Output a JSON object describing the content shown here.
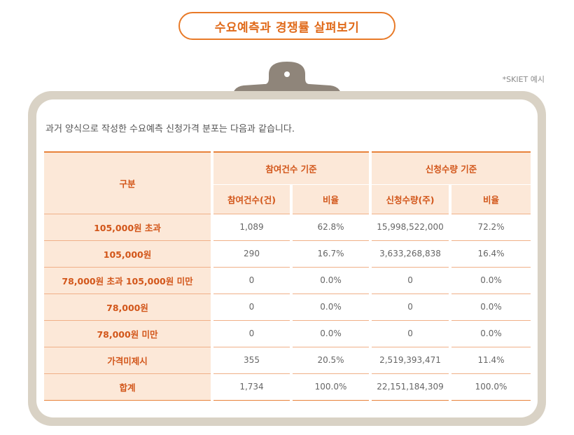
{
  "title": "수요예측과 경쟁률 살펴보기",
  "note": "*SKIET 예시",
  "intro": "과거 양식으로 작성한 수요예측 신청가격 분포는 다음과 같습니다.",
  "colors": {
    "accent": "#e87a28",
    "header_bg": "#fce8d8",
    "label_text": "#d2561a",
    "board": "#d9d2c5",
    "clip": "#8f857a"
  },
  "icons": {
    "clipboard": "clipboard-clip-icon"
  },
  "table": {
    "header_label": "구분",
    "group1": "참여건수 기준",
    "group2": "신청수량 기준",
    "sub": [
      "참여건수(건)",
      "비율",
      "신청수량(주)",
      "비율"
    ],
    "rows": [
      {
        "label": "105,000원 초과",
        "values": [
          "1,089",
          "62.8%",
          "15,998,522,000",
          "72.2%"
        ]
      },
      {
        "label": "105,000원",
        "values": [
          "290",
          "16.7%",
          "3,633,268,838",
          "16.4%"
        ]
      },
      {
        "label": "78,000원 초과 105,000원 미만",
        "values": [
          "0",
          "0.0%",
          "0",
          "0.0%"
        ]
      },
      {
        "label": "78,000원",
        "values": [
          "0",
          "0.0%",
          "0",
          "0.0%"
        ]
      },
      {
        "label": "78,000원 미만",
        "values": [
          "0",
          "0.0%",
          "0",
          "0.0%"
        ]
      },
      {
        "label": "가격미제시",
        "values": [
          "355",
          "20.5%",
          "2,519,393,471",
          "11.4%"
        ]
      },
      {
        "label": "합계",
        "values": [
          "1,734",
          "100.0%",
          "22,151,184,309",
          "100.0%"
        ]
      }
    ]
  }
}
